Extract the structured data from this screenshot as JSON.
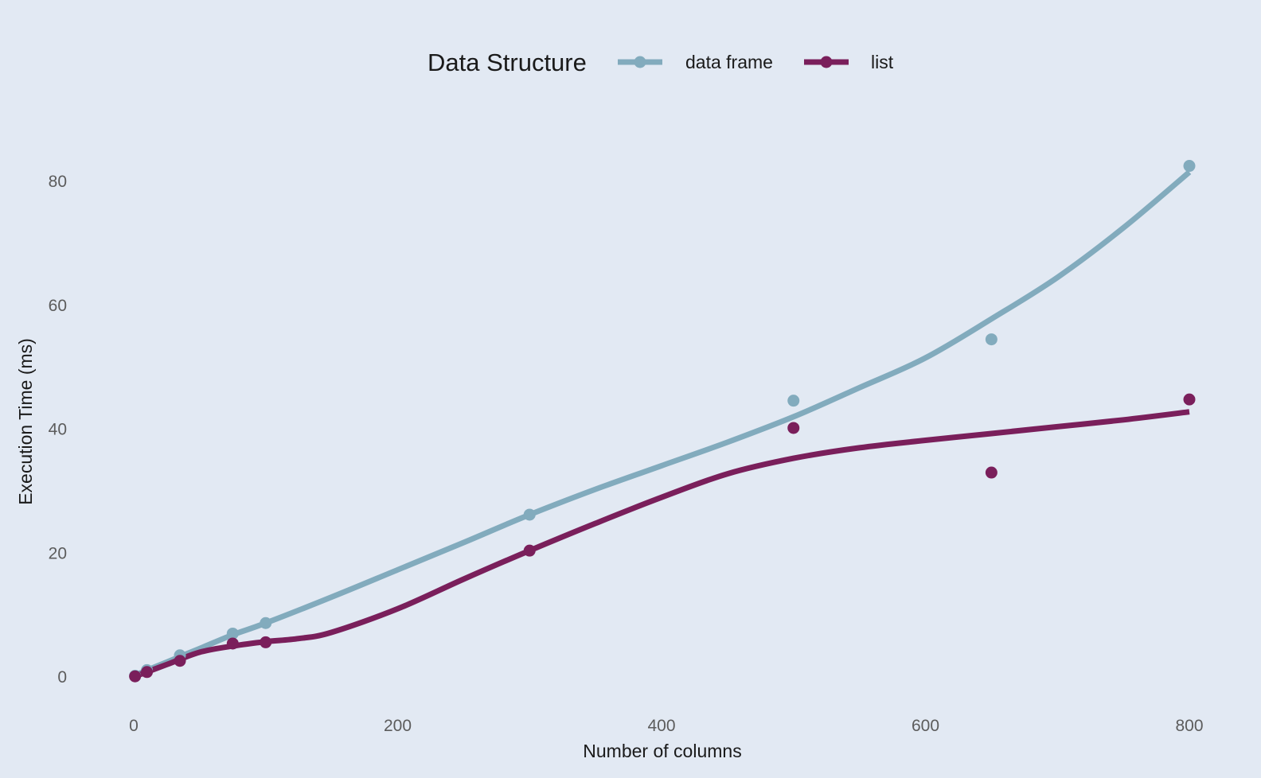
{
  "chart_data": {
    "type": "scatter",
    "xlabel": "Number of columns",
    "ylabel": "Execution Time (ms)",
    "xlim": [
      -40,
      840
    ],
    "ylim": [
      -5,
      90
    ],
    "x_ticks": [
      0,
      200,
      400,
      600,
      800
    ],
    "y_ticks": [
      0,
      20,
      40,
      60,
      80
    ],
    "x_tick_labels": [
      "0",
      "200",
      "400",
      "600",
      "800"
    ],
    "y_tick_labels": [
      "0",
      "20",
      "40",
      "60",
      "80"
    ],
    "grid": false,
    "legend": {
      "title": "Data Structure",
      "position": "top"
    },
    "series": [
      {
        "name": "data frame",
        "color": "#82abbd",
        "points": [
          [
            1,
            0.2
          ],
          [
            10,
            1.1
          ],
          [
            35,
            3.5
          ],
          [
            75,
            7.0
          ],
          [
            100,
            8.7
          ],
          [
            300,
            26.2
          ],
          [
            500,
            44.6
          ],
          [
            650,
            54.5
          ],
          [
            800,
            82.5
          ]
        ],
        "smooth": [
          [
            1,
            0.3
          ],
          [
            25,
            2.4
          ],
          [
            50,
            4.6
          ],
          [
            75,
            6.8
          ],
          [
            100,
            8.7
          ],
          [
            150,
            12.9
          ],
          [
            200,
            17.3
          ],
          [
            250,
            21.7
          ],
          [
            300,
            26.2
          ],
          [
            350,
            30.3
          ],
          [
            400,
            34.1
          ],
          [
            450,
            37.9
          ],
          [
            500,
            42.0
          ],
          [
            550,
            46.7
          ],
          [
            600,
            51.5
          ],
          [
            650,
            57.8
          ],
          [
            700,
            64.5
          ],
          [
            750,
            72.5
          ],
          [
            800,
            81.5
          ]
        ]
      },
      {
        "name": "list",
        "color": "#7a1f5b",
        "points": [
          [
            1,
            0.1
          ],
          [
            10,
            0.8
          ],
          [
            35,
            2.6
          ],
          [
            75,
            5.4
          ],
          [
            100,
            5.6
          ],
          [
            300,
            20.4
          ],
          [
            500,
            40.2
          ],
          [
            650,
            33.0
          ],
          [
            800,
            44.8
          ]
        ],
        "smooth": [
          [
            1,
            0.1
          ],
          [
            25,
            2.0
          ],
          [
            50,
            4.0
          ],
          [
            75,
            5.0
          ],
          [
            100,
            5.7
          ],
          [
            125,
            6.2
          ],
          [
            150,
            7.2
          ],
          [
            200,
            11.0
          ],
          [
            250,
            15.8
          ],
          [
            300,
            20.4
          ],
          [
            350,
            24.8
          ],
          [
            400,
            29.0
          ],
          [
            450,
            32.8
          ],
          [
            500,
            35.3
          ],
          [
            550,
            37.0
          ],
          [
            600,
            38.2
          ],
          [
            650,
            39.3
          ],
          [
            700,
            40.4
          ],
          [
            750,
            41.5
          ],
          [
            800,
            42.8
          ]
        ]
      }
    ]
  }
}
